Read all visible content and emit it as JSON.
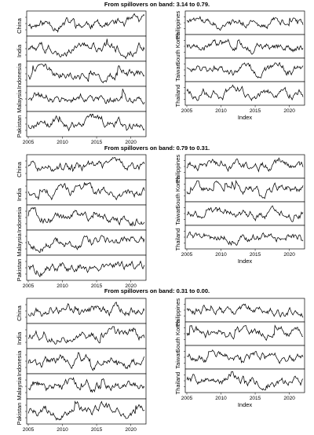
{
  "figure": {
    "groups": [
      {
        "title": "From spillovers on band: 3.14 to 0.79.",
        "left_panels": [
          "China",
          "India",
          "Indonesia",
          "Malaysia",
          "Pakistan"
        ],
        "right_panels": [
          "Philippines",
          "South Korea",
          "Taiwan",
          "Thailand"
        ]
      },
      {
        "title": "From spillovers on band: 0.79 to 0.31.",
        "left_panels": [
          "China",
          "India",
          "Indonesia",
          "Malaysia",
          "Pakistan"
        ],
        "right_panels": [
          "Philippines",
          "South Korea",
          "Taiwan",
          "Thailand"
        ]
      },
      {
        "title": "From spillovers on band: 0.31 to 0.00.",
        "left_panels": [
          "China",
          "India",
          "Indonesia",
          "Malaysia",
          "Pakistan"
        ],
        "right_panels": [
          "Philippines",
          "South Korea",
          "Taiwan",
          "Thailand"
        ]
      }
    ],
    "x_ticks": [
      "2005",
      "2010",
      "2015",
      "2020"
    ],
    "x_axis_label": "Index",
    "line_color": "#000000"
  },
  "chart_data": [
    {
      "type": "line",
      "title": "From spillovers on band: 3.14 to 0.79.",
      "x_range": [
        2005,
        2022
      ],
      "xticks": [
        "2005",
        "2010",
        "2015",
        "2020"
      ],
      "xlabel": "Index",
      "series_names": [
        "China",
        "India",
        "Indonesia",
        "Malaysia",
        "Pakistan",
        "Philippines",
        "South Korea",
        "Taiwan",
        "Thailand"
      ]
    },
    {
      "type": "line",
      "title": "From spillovers on band: 0.79 to 0.31.",
      "x_range": [
        2005,
        2022
      ],
      "xticks": [
        "2005",
        "2010",
        "2015",
        "2020"
      ],
      "xlabel": "Index",
      "series_names": [
        "China",
        "India",
        "Indonesia",
        "Malaysia",
        "Pakistan",
        "Philippines",
        "South Korea",
        "Taiwan",
        "Thailand"
      ]
    },
    {
      "type": "line",
      "title": "From spillovers on band: 0.31 to 0.00.",
      "x_range": [
        2005,
        2022
      ],
      "xticks": [
        "2005",
        "2010",
        "2015",
        "2020"
      ],
      "xlabel": "Index",
      "series_names": [
        "China",
        "India",
        "Indonesia",
        "Malaysia",
        "Pakistan",
        "Philippines",
        "South Korea",
        "Taiwan",
        "Thailand"
      ]
    }
  ]
}
